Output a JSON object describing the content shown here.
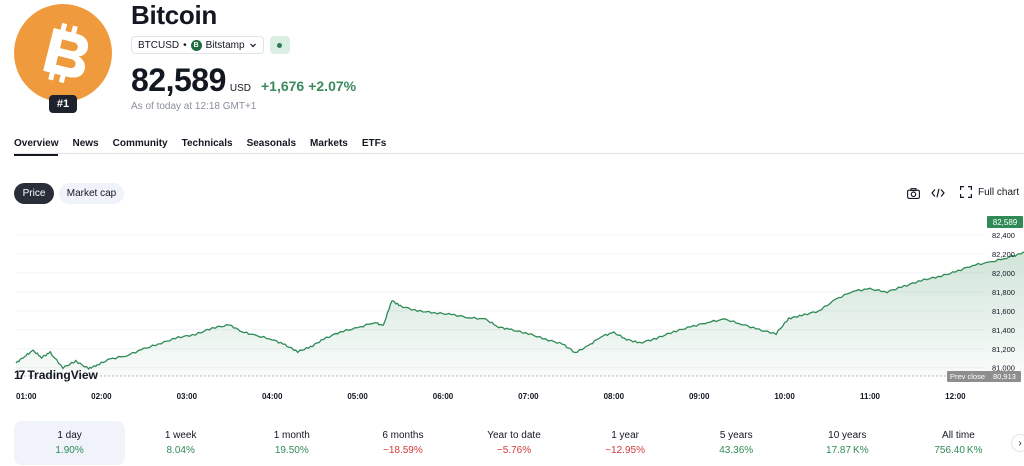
{
  "header": {
    "title": "Bitcoin",
    "rank": "#1",
    "symbol": "BTCUSD",
    "separator": "•",
    "exchange": "Bitstamp",
    "exchange_badge": "B",
    "price": "82,589",
    "currency": "USD",
    "change_abs": "+1,676",
    "change_pct": "+2.07%",
    "as_of": "As of today at 12:18 GMT+1",
    "logo_color": "#f09a3e"
  },
  "tabs": [
    {
      "label": "Overview",
      "active": true
    },
    {
      "label": "News"
    },
    {
      "label": "Community"
    },
    {
      "label": "Technicals"
    },
    {
      "label": "Seasonals"
    },
    {
      "label": "Markets"
    },
    {
      "label": "ETFs"
    }
  ],
  "chart_toolbar": {
    "price_label": "Price",
    "market_cap_label": "Market cap",
    "full_chart_label": "Full chart",
    "icons": [
      "camera-icon",
      "embed-code-icon",
      "fullscreen-icon"
    ]
  },
  "chart_data": {
    "type": "area",
    "x_ticks": [
      "01:00",
      "02:00",
      "03:00",
      "04:00",
      "05:00",
      "06:00",
      "07:00",
      "08:00",
      "09:00",
      "10:00",
      "11:00",
      "12:00"
    ],
    "y_ticks": [
      "81,000",
      "81,200",
      "81,400",
      "81,600",
      "81,800",
      "82,000",
      "82,200",
      "82,400"
    ],
    "ylim": [
      80913,
      82589
    ],
    "last_price_label": "82,589",
    "prev_close_label": "Prev close",
    "prev_close_value": "80,913",
    "line_color": "#2f8a56",
    "points": [
      [
        0.0,
        81050
      ],
      [
        0.1,
        81120
      ],
      [
        0.2,
        81180
      ],
      [
        0.3,
        81110
      ],
      [
        0.4,
        81160
      ],
      [
        0.55,
        81000
      ],
      [
        0.7,
        81070
      ],
      [
        0.85,
        80990
      ],
      [
        0.95,
        81030
      ],
      [
        1.1,
        81090
      ],
      [
        1.3,
        81130
      ],
      [
        1.5,
        81200
      ],
      [
        1.7,
        81260
      ],
      [
        1.9,
        81320
      ],
      [
        2.1,
        81350
      ],
      [
        2.3,
        81420
      ],
      [
        2.5,
        81450
      ],
      [
        2.65,
        81380
      ],
      [
        2.8,
        81340
      ],
      [
        3.0,
        81300
      ],
      [
        3.15,
        81240
      ],
      [
        3.3,
        81170
      ],
      [
        3.45,
        81220
      ],
      [
        3.6,
        81300
      ],
      [
        3.8,
        81380
      ],
      [
        4.0,
        81420
      ],
      [
        4.2,
        81480
      ],
      [
        4.3,
        81440
      ],
      [
        4.4,
        81710
      ],
      [
        4.5,
        81650
      ],
      [
        4.7,
        81600
      ],
      [
        4.9,
        81580
      ],
      [
        5.1,
        81560
      ],
      [
        5.3,
        81530
      ],
      [
        5.5,
        81510
      ],
      [
        5.65,
        81430
      ],
      [
        5.8,
        81400
      ],
      [
        6.0,
        81360
      ],
      [
        6.2,
        81300
      ],
      [
        6.4,
        81250
      ],
      [
        6.55,
        81160
      ],
      [
        6.7,
        81230
      ],
      [
        6.85,
        81330
      ],
      [
        7.0,
        81370
      ],
      [
        7.15,
        81300
      ],
      [
        7.3,
        81260
      ],
      [
        7.5,
        81310
      ],
      [
        7.7,
        81380
      ],
      [
        7.9,
        81430
      ],
      [
        8.1,
        81480
      ],
      [
        8.3,
        81510
      ],
      [
        8.5,
        81460
      ],
      [
        8.7,
        81400
      ],
      [
        8.9,
        81360
      ],
      [
        9.05,
        81520
      ],
      [
        9.2,
        81550
      ],
      [
        9.4,
        81600
      ],
      [
        9.6,
        81720
      ],
      [
        9.8,
        81810
      ],
      [
        10.0,
        81830
      ],
      [
        10.2,
        81800
      ],
      [
        10.4,
        81860
      ],
      [
        10.6,
        81920
      ],
      [
        10.8,
        81960
      ],
      [
        11.0,
        82010
      ],
      [
        11.2,
        82080
      ],
      [
        11.4,
        82110
      ],
      [
        11.6,
        82160
      ],
      [
        11.8,
        82210
      ],
      [
        12.0,
        82260
      ],
      [
        12.15,
        82360
      ],
      [
        12.25,
        82420
      ],
      [
        12.3,
        82589
      ]
    ]
  },
  "branding": {
    "tv_mark": "17",
    "tv_name": "TradingView"
  },
  "periods": [
    {
      "label": "1 day",
      "value": "1.90%",
      "sign": "pos",
      "active": true
    },
    {
      "label": "1 week",
      "value": "8.04%",
      "sign": "pos"
    },
    {
      "label": "1 month",
      "value": "19.50%",
      "sign": "pos"
    },
    {
      "label": "6 months",
      "value": "−18.59%",
      "sign": "neg"
    },
    {
      "label": "Year to date",
      "value": "−5.76%",
      "sign": "neg"
    },
    {
      "label": "1 year",
      "value": "−12.95%",
      "sign": "neg"
    },
    {
      "label": "5 years",
      "value": "43.36%",
      "sign": "pos"
    },
    {
      "label": "10 years",
      "value": "17.87 K%",
      "sign": "pos"
    },
    {
      "label": "All time",
      "value": "756.40 K%",
      "sign": "pos"
    }
  ],
  "next_arrow": "›"
}
